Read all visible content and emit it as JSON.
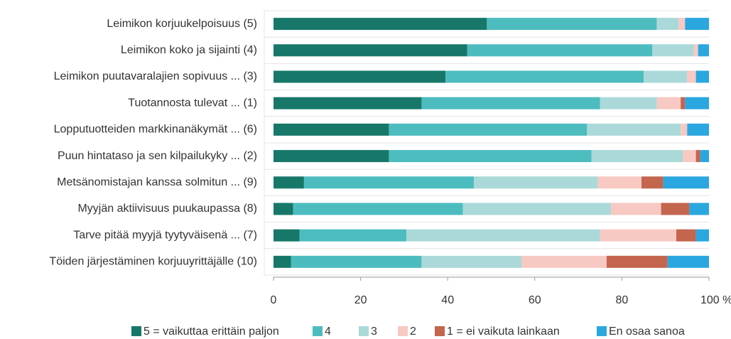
{
  "chart_data": {
    "type": "stacked_barh",
    "categories": [
      "Leimikon korjuukelpoisuus (5)",
      "Leimikon koko ja sijainti (4)",
      "Leimikon puutavaralajien sopivuus ... (3)",
      "Tuotannosta tulevat ... (1)",
      "Lopputuotteiden markkinanäkymät ... (6)",
      "Puun hintataso ja sen kilpailukyky ... (2)",
      "Metsänomistajan kanssa solmitun ... (9)",
      "Myyjän aktiivisuus puukaupassa (8)",
      "Tarve pitää myyjä tyytyväisenä ... (7)",
      "Töiden järjestäminen korjuuyrittäjälle (10)"
    ],
    "series": [
      {
        "name": "5 = vaikuttaa erittäin paljon",
        "color": "#17786a",
        "values": [
          49,
          44.5,
          39.5,
          34,
          26.5,
          26.5,
          7,
          4.5,
          6,
          4
        ]
      },
      {
        "name": "4",
        "color": "#4dbcbf",
        "values": [
          39,
          42.5,
          45.5,
          41,
          45.5,
          46.5,
          39,
          39,
          24.5,
          30
        ]
      },
      {
        "name": "3",
        "color": "#abd9d9",
        "values": [
          5,
          9.5,
          10,
          13,
          21.5,
          21,
          28.5,
          34,
          44.5,
          23
        ]
      },
      {
        "name": "2",
        "color": "#f7c9c2",
        "values": [
          1.5,
          1,
          2,
          5.5,
          1.5,
          3,
          10,
          11.5,
          17.5,
          19.5
        ]
      },
      {
        "name": "1 = ei vaikuta lainkaan",
        "color": "#c4654e",
        "values": [
          0,
          0,
          0,
          1,
          0,
          1,
          5,
          6.5,
          4.5,
          14
        ]
      },
      {
        "name": "En osaa sanoa",
        "color": "#2ba7e0",
        "values": [
          5.5,
          2.5,
          3,
          5.5,
          5,
          2,
          10.5,
          4.5,
          3,
          9.5
        ]
      }
    ],
    "xlim": [
      0,
      100
    ],
    "xticks": [
      0,
      20,
      40,
      60,
      80,
      {
        "value": 100,
        "label": "100 %"
      }
    ]
  }
}
